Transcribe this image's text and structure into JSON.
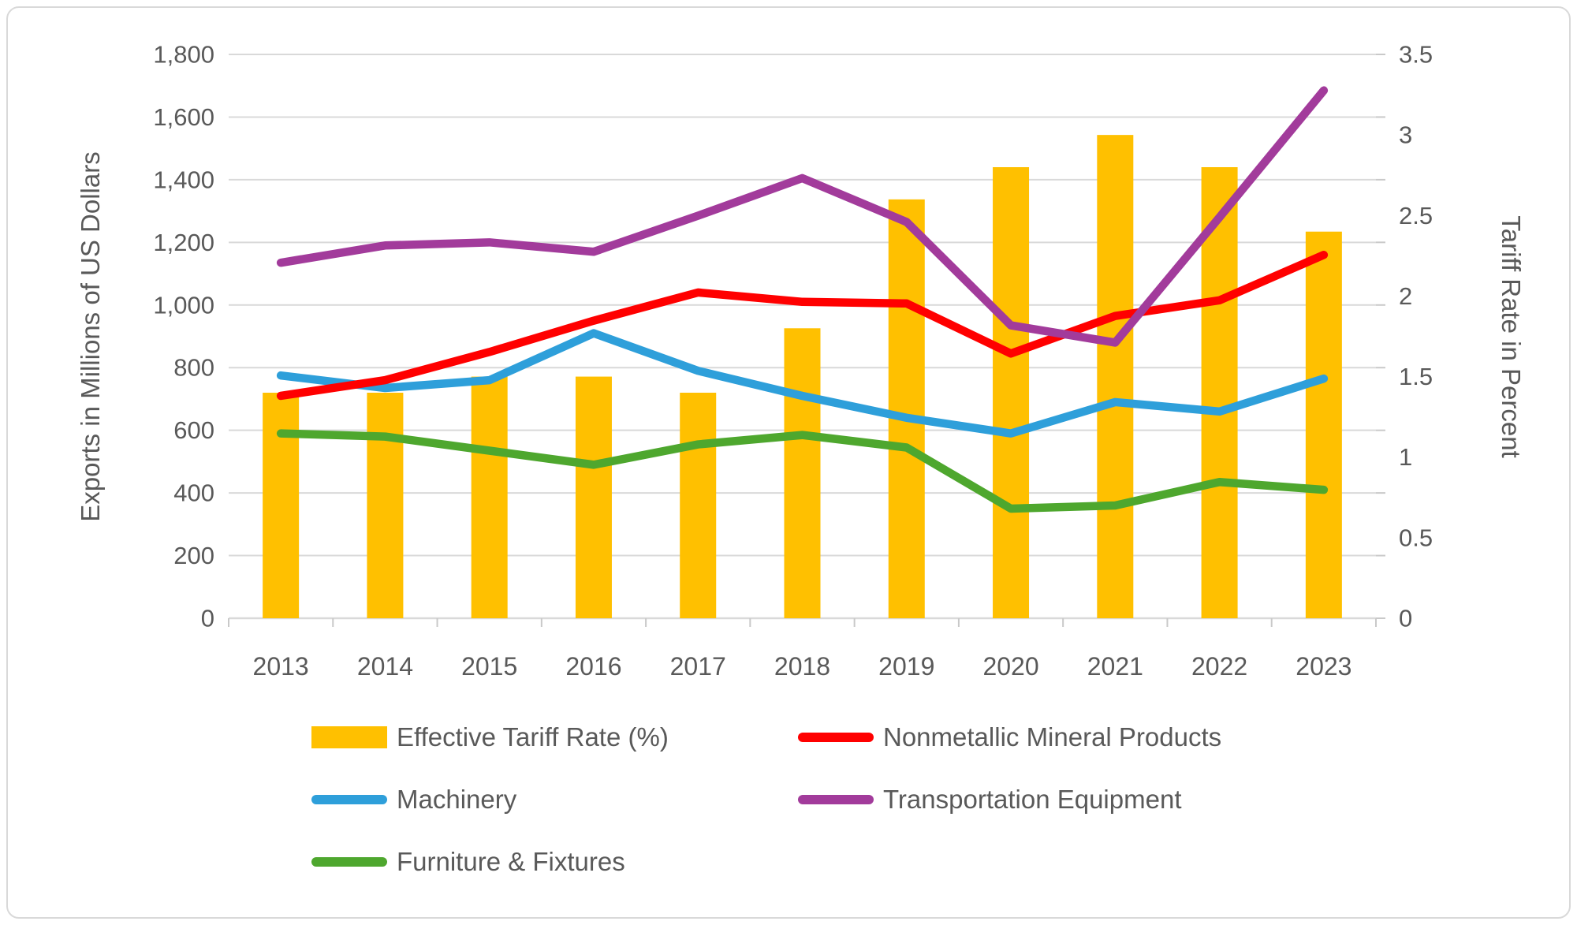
{
  "chart_data": {
    "type": "combo-bar-line",
    "categories": [
      "2013",
      "2014",
      "2015",
      "2016",
      "2017",
      "2018",
      "2019",
      "2020",
      "2021",
      "2022",
      "2023"
    ],
    "series": [
      {
        "name": "Effective Tariff Rate (%)",
        "type": "bar",
        "axis": "right",
        "color": "#FFC000",
        "z": 0,
        "values": [
          1.4,
          1.4,
          1.5,
          1.5,
          1.4,
          1.8,
          2.6,
          2.8,
          3.0,
          2.8,
          2.4
        ]
      },
      {
        "name": "Nonmetallic Mineral Products",
        "type": "line",
        "axis": "left",
        "color": "#FF0000",
        "z": 2,
        "values": [
          710,
          760,
          850,
          950,
          1040,
          1010,
          1005,
          845,
          965,
          1015,
          1160
        ]
      },
      {
        "name": "Machinery",
        "type": "line",
        "axis": "left",
        "color": "#2E9FDA",
        "z": 1,
        "values": [
          775,
          735,
          760,
          910,
          790,
          710,
          640,
          590,
          690,
          660,
          765
        ]
      },
      {
        "name": "Transportation Equipment",
        "type": "line",
        "axis": "left",
        "color": "#A23B9B",
        "z": 4,
        "values": [
          1135,
          1190,
          1200,
          1170,
          1285,
          1405,
          1265,
          935,
          880,
          1280,
          1685
        ]
      },
      {
        "name": "Furniture & Fixtures",
        "type": "line",
        "axis": "left",
        "color": "#4EA72E",
        "z": 3,
        "values": [
          590,
          580,
          535,
          490,
          555,
          585,
          545,
          350,
          360,
          435,
          410
        ]
      }
    ],
    "left_axis": {
      "title": "Exports in Millions of US Dollars",
      "min": 0,
      "max": 1800,
      "step": 200,
      "tick_labels": [
        "0",
        "200",
        "400",
        "600",
        "800",
        "1,000",
        "1,200",
        "1,400",
        "1,600",
        "1,800"
      ]
    },
    "right_axis": {
      "title": "Tariff Rate in Percent",
      "min": 0,
      "max": 3.5,
      "step": 0.5,
      "tick_labels": [
        "0",
        "0.5",
        "1",
        "1.5",
        "2",
        "2.5",
        "3",
        "3.5"
      ]
    },
    "grid": {
      "on": true,
      "color": "#D9D9D9"
    },
    "text_color": "#595959",
    "legend_position": "bottom-two-columns"
  },
  "legend": {
    "items": [
      {
        "label": "Effective Tariff Rate (%)",
        "swatch": "bar",
        "series": "Effective Tariff Rate (%)",
        "col": 0,
        "row": 0
      },
      {
        "label": "Nonmetallic Mineral Products",
        "swatch": "line",
        "series": "Nonmetallic Mineral Products",
        "col": 1,
        "row": 0
      },
      {
        "label": "Machinery",
        "swatch": "line",
        "series": "Machinery",
        "col": 0,
        "row": 1
      },
      {
        "label": "Transportation Equipment",
        "swatch": "line",
        "series": "Transportation Equipment",
        "col": 1,
        "row": 1
      },
      {
        "label": "Furniture & Fixtures",
        "swatch": "line",
        "series": "Furniture & Fixtures",
        "col": 0,
        "row": 2
      }
    ]
  }
}
